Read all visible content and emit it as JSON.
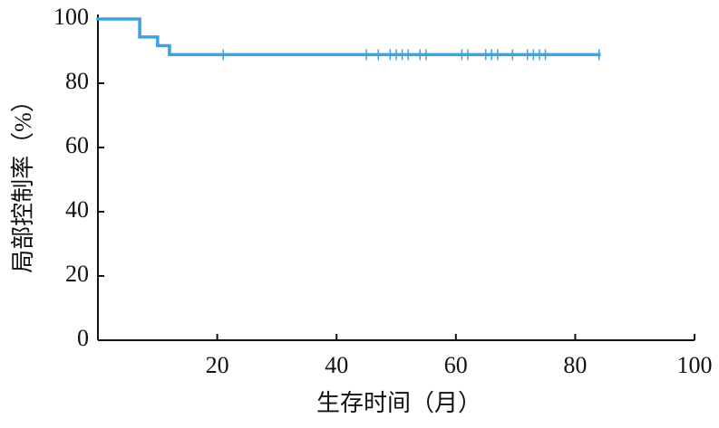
{
  "chart_data": {
    "type": "step",
    "x_label": "生存时间（月）",
    "y_label": "局部控制率（%）",
    "x": [
      0,
      7,
      10,
      12,
      84
    ],
    "values": [
      100,
      94.4,
      91.7,
      88.9,
      88.9
    ],
    "censored": {
      "x": [
        21,
        45,
        47,
        49,
        50,
        51,
        52,
        54,
        55,
        61,
        62,
        65,
        66,
        67,
        69.5,
        72,
        73,
        74,
        75,
        84
      ],
      "values": [
        88.9,
        88.9,
        88.9,
        88.9,
        88.9,
        88.9,
        88.9,
        88.9,
        88.9,
        88.9,
        88.9,
        88.9,
        88.9,
        88.9,
        88.9,
        88.9,
        88.9,
        88.9,
        88.9,
        88.9
      ]
    },
    "color": "#3da2e0",
    "xlim": [
      0,
      100
    ],
    "xticks": [
      20,
      40,
      60,
      80,
      100
    ],
    "ylim": [
      0,
      100
    ],
    "yticks": [
      0,
      20,
      40,
      60,
      80,
      100
    ]
  }
}
